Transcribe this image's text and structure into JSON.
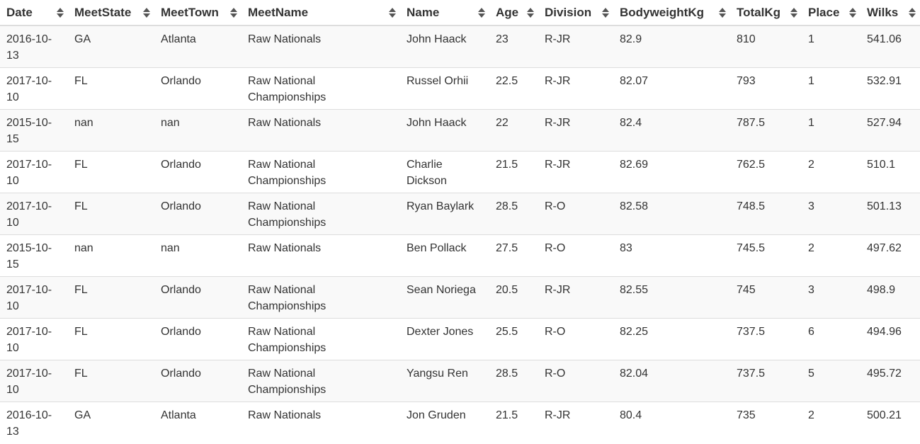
{
  "table": {
    "columns": [
      {
        "key": "date",
        "label": "Date"
      },
      {
        "key": "meet_state",
        "label": "MeetState"
      },
      {
        "key": "meet_town",
        "label": "MeetTown"
      },
      {
        "key": "meet_name",
        "label": "MeetName"
      },
      {
        "key": "name",
        "label": "Name"
      },
      {
        "key": "age",
        "label": "Age"
      },
      {
        "key": "division",
        "label": "Division"
      },
      {
        "key": "bodyweight_kg",
        "label": "BodyweightKg"
      },
      {
        "key": "total_kg",
        "label": "TotalKg"
      },
      {
        "key": "place",
        "label": "Place"
      },
      {
        "key": "wilks",
        "label": "Wilks"
      }
    ],
    "sort_icon": "sort-both-arrows-icon",
    "rows": [
      [
        "2016-10-13",
        "GA",
        "Atlanta",
        "Raw Nationals",
        "John Haack",
        "23",
        "R-JR",
        "82.9",
        "810",
        "1",
        "541.06"
      ],
      [
        "2017-10-10",
        "FL",
        "Orlando",
        "Raw National Championships",
        "Russel Orhii",
        "22.5",
        "R-JR",
        "82.07",
        "793",
        "1",
        "532.91"
      ],
      [
        "2015-10-15",
        "nan",
        "nan",
        "Raw Nationals",
        "John Haack",
        "22",
        "R-JR",
        "82.4",
        "787.5",
        "1",
        "527.94"
      ],
      [
        "2017-10-10",
        "FL",
        "Orlando",
        "Raw National Championships",
        "Charlie Dickson",
        "21.5",
        "R-JR",
        "82.69",
        "762.5",
        "2",
        "510.1"
      ],
      [
        "2017-10-10",
        "FL",
        "Orlando",
        "Raw National Championships",
        "Ryan Baylark",
        "28.5",
        "R-O",
        "82.58",
        "748.5",
        "3",
        "501.13"
      ],
      [
        "2015-10-15",
        "nan",
        "nan",
        "Raw Nationals",
        "Ben Pollack",
        "27.5",
        "R-O",
        "83",
        "745.5",
        "2",
        "497.62"
      ],
      [
        "2017-10-10",
        "FL",
        "Orlando",
        "Raw National Championships",
        "Sean Noriega",
        "20.5",
        "R-JR",
        "82.55",
        "745",
        "3",
        "498.9"
      ],
      [
        "2017-10-10",
        "FL",
        "Orlando",
        "Raw National Championships",
        "Dexter Jones",
        "25.5",
        "R-O",
        "82.25",
        "737.5",
        "6",
        "494.96"
      ],
      [
        "2017-10-10",
        "FL",
        "Orlando",
        "Raw National Championships",
        "Yangsu Ren",
        "28.5",
        "R-O",
        "82.04",
        "737.5",
        "5",
        "495.72"
      ],
      [
        "2016-10-13",
        "GA",
        "Atlanta",
        "Raw Nationals",
        "Jon Gruden",
        "21.5",
        "R-JR",
        "80.4",
        "735",
        "2",
        "500.21"
      ]
    ]
  },
  "colors": {
    "text": "#333333",
    "stripe": "#f9f9f9",
    "border": "#dddddd",
    "sort_icon": "#555555"
  }
}
